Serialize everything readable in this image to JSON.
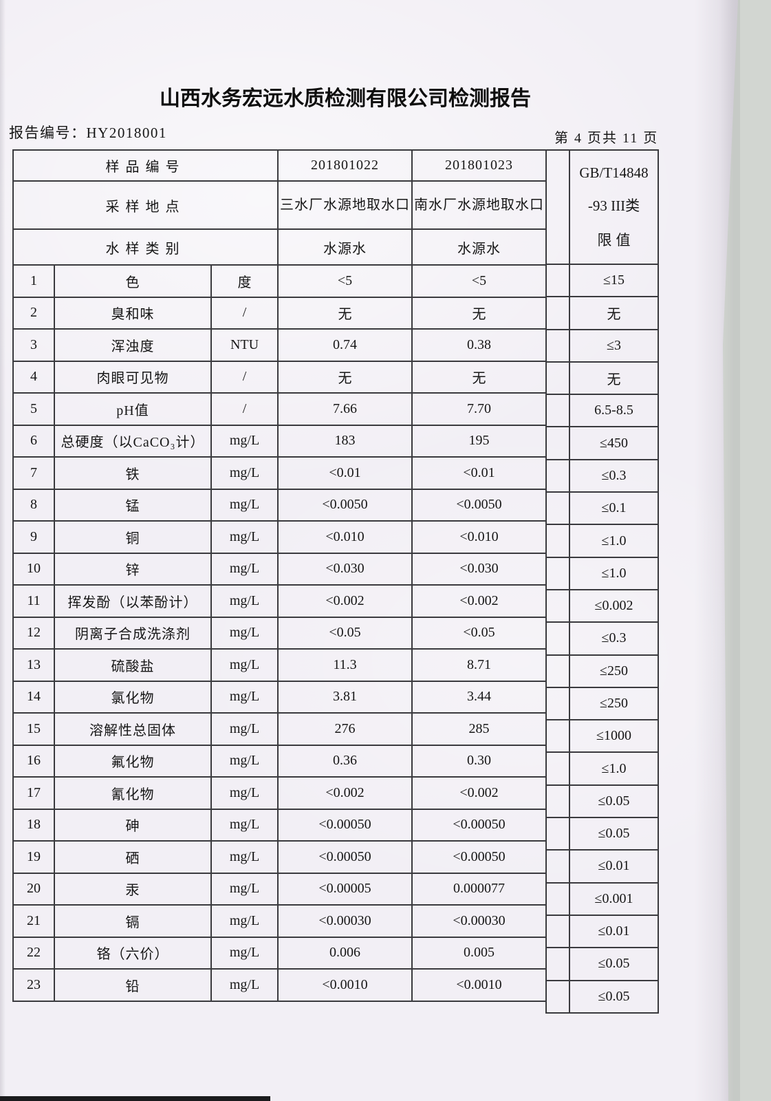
{
  "colors": {
    "paper": "#f2eff5",
    "scanner_background": "#d2d6d1",
    "table_border": "#3a3a3e",
    "text": "#161616"
  },
  "header": {
    "title": "山西水务宏远水质检测有限公司检测报告",
    "report_no": "报告编号：HY2018001",
    "page_indicator": "第 4 页共 11 页"
  },
  "table": {
    "header_rows": [
      {
        "label": "样品编号",
        "col1": "201801022",
        "col2": "201801023"
      },
      {
        "label": "采样地点",
        "col1": "三水厂水源地取水口",
        "col2": "南水厂水源地取水口"
      },
      {
        "label": "水样类别",
        "col1": "水源水",
        "col2": "水源水"
      }
    ],
    "limit_header_lines": [
      "GB/T14848",
      "-93 III类",
      "限值"
    ],
    "rows": [
      {
        "no": "1",
        "name": "色",
        "unit": "度",
        "v1": "<5",
        "v2": "<5",
        "limit": "≤15"
      },
      {
        "no": "2",
        "name": "臭和味",
        "unit": "/",
        "v1": "无",
        "v2": "无",
        "limit": "无"
      },
      {
        "no": "3",
        "name": "浑浊度",
        "unit": "NTU",
        "v1": "0.74",
        "v2": "0.38",
        "limit": "≤3"
      },
      {
        "no": "4",
        "name": "肉眼可见物",
        "unit": "/",
        "v1": "无",
        "v2": "无",
        "limit": "无"
      },
      {
        "no": "5",
        "name": "pH值",
        "unit": "/",
        "v1": "7.66",
        "v2": "7.70",
        "limit": "6.5-8.5"
      },
      {
        "no": "6",
        "name": "总硬度（以CaCO₃计）",
        "unit": "mg/L",
        "v1": "183",
        "v2": "195",
        "limit": "≤450"
      },
      {
        "no": "7",
        "name": "铁",
        "unit": "mg/L",
        "v1": "<0.01",
        "v2": "<0.01",
        "limit": "≤0.3"
      },
      {
        "no": "8",
        "name": "锰",
        "unit": "mg/L",
        "v1": "<0.0050",
        "v2": "<0.0050",
        "limit": "≤0.1"
      },
      {
        "no": "9",
        "name": "铜",
        "unit": "mg/L",
        "v1": "<0.010",
        "v2": "<0.010",
        "limit": "≤1.0"
      },
      {
        "no": "10",
        "name": "锌",
        "unit": "mg/L",
        "v1": "<0.030",
        "v2": "<0.030",
        "limit": "≤1.0"
      },
      {
        "no": "11",
        "name": "挥发酚（以苯酚计）",
        "unit": "mg/L",
        "v1": "<0.002",
        "v2": "<0.002",
        "limit": "≤0.002"
      },
      {
        "no": "12",
        "name": "阴离子合成洗涤剂",
        "unit": "mg/L",
        "v1": "<0.05",
        "v2": "<0.05",
        "limit": "≤0.3"
      },
      {
        "no": "13",
        "name": "硫酸盐",
        "unit": "mg/L",
        "v1": "11.3",
        "v2": "8.71",
        "limit": "≤250"
      },
      {
        "no": "14",
        "name": "氯化物",
        "unit": "mg/L",
        "v1": "3.81",
        "v2": "3.44",
        "limit": "≤250"
      },
      {
        "no": "15",
        "name": "溶解性总固体",
        "unit": "mg/L",
        "v1": "276",
        "v2": "285",
        "limit": "≤1000"
      },
      {
        "no": "16",
        "name": "氟化物",
        "unit": "mg/L",
        "v1": "0.36",
        "v2": "0.30",
        "limit": "≤1.0"
      },
      {
        "no": "17",
        "name": "氰化物",
        "unit": "mg/L",
        "v1": "<0.002",
        "v2": "<0.002",
        "limit": "≤0.05"
      },
      {
        "no": "18",
        "name": "砷",
        "unit": "mg/L",
        "v1": "<0.00050",
        "v2": "<0.00050",
        "limit": "≤0.05"
      },
      {
        "no": "19",
        "name": "硒",
        "unit": "mg/L",
        "v1": "<0.00050",
        "v2": "<0.00050",
        "limit": "≤0.01"
      },
      {
        "no": "20",
        "name": "汞",
        "unit": "mg/L",
        "v1": "<0.00005",
        "v2": "0.000077",
        "limit": "≤0.001"
      },
      {
        "no": "21",
        "name": "镉",
        "unit": "mg/L",
        "v1": "<0.00030",
        "v2": "<0.00030",
        "limit": "≤0.01"
      },
      {
        "no": "22",
        "name": "铬（六价）",
        "unit": "mg/L",
        "v1": "0.006",
        "v2": "0.005",
        "limit": "≤0.05"
      },
      {
        "no": "23",
        "name": "铅",
        "unit": "mg/L",
        "v1": "<0.0010",
        "v2": "<0.0010",
        "limit": "≤0.05"
      }
    ]
  }
}
